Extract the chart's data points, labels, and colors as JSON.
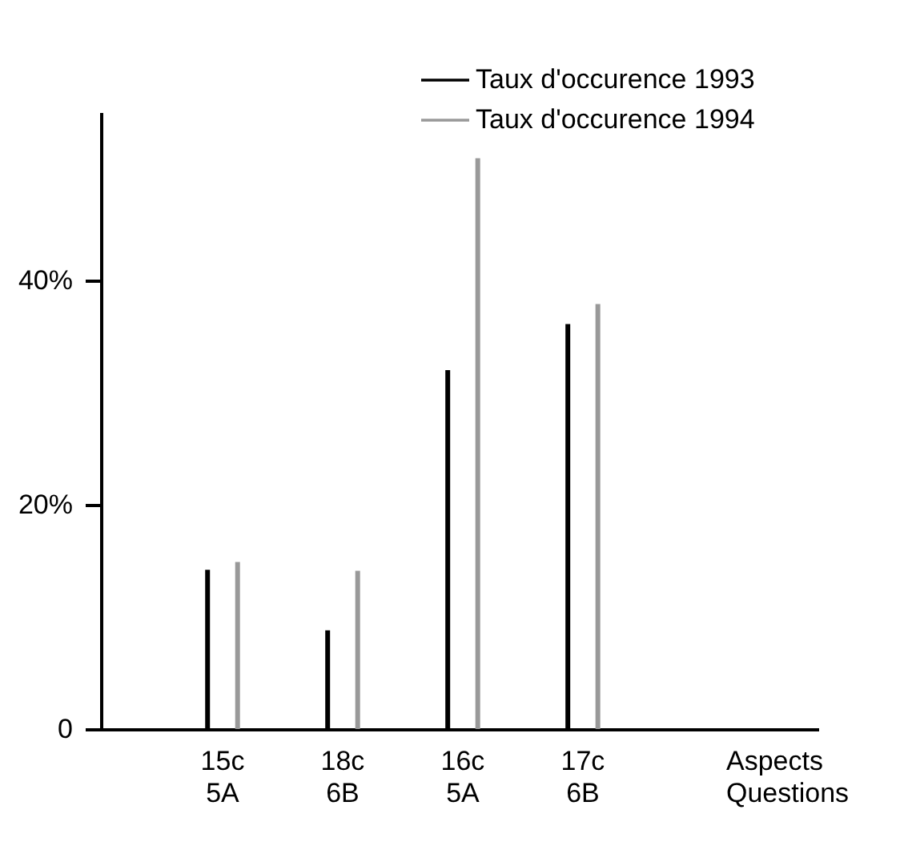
{
  "chart_data": {
    "type": "bar",
    "categories": [
      "15c\n5A",
      "18c\n6B",
      "16c\n5A",
      "17c\n6B"
    ],
    "xlabel": "Aspects\nQuestions",
    "series": [
      {
        "name": "Taux d'occurence 1993",
        "color": "#000000",
        "values": [
          14.2,
          8.8,
          32.0,
          36.1
        ]
      },
      {
        "name": "Taux d'occurence 1994",
        "color": "#999999",
        "values": [
          14.9,
          14.1,
          50.9,
          37.9
        ]
      }
    ],
    "ylim": [
      0,
      55
    ],
    "yticks": [
      0,
      {
        "value": 20,
        "label": "20%"
      },
      {
        "value": 40,
        "label": "40%"
      }
    ],
    "grid": false,
    "legend": "top right"
  }
}
